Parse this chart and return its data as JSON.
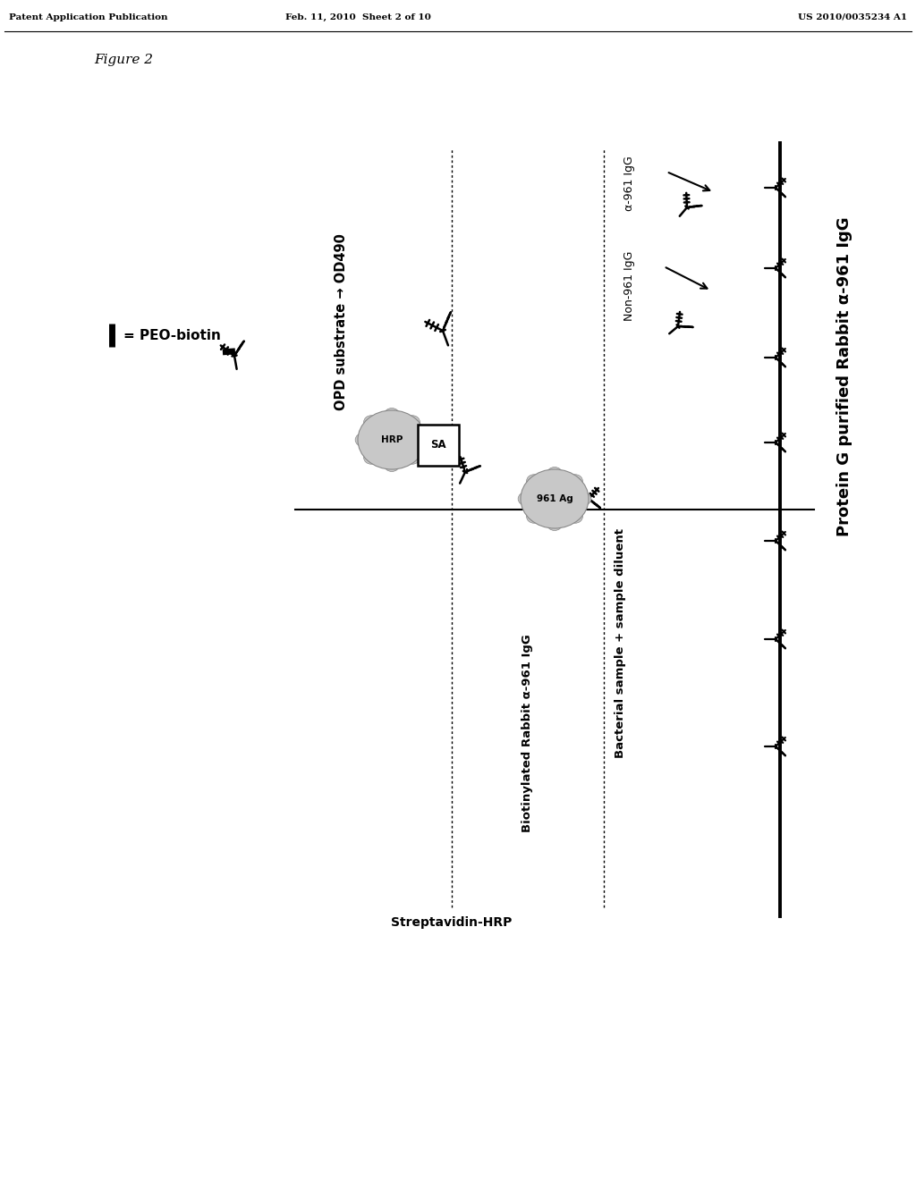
{
  "title_left": "Patent Application Publication",
  "title_mid": "Feb. 11, 2010  Sheet 2 of 10",
  "title_right": "US 2010/0035234 A1",
  "figure_label": "Figure 2",
  "legend_peo": "= PEO-biotin",
  "label_opd": "OPD substrate → OD490",
  "label_streptavidin": "Streptavidin-HRP",
  "label_biotin_rabbit": "Biotinylated Rabbit α-961 IgG",
  "label_bacterial": "Bacterial sample + sample diluent",
  "label_protein_g": "Protein G purified Rabbit α-961 IgG",
  "label_non961": "Non-961 IgG",
  "label_a961": "α-961 IgG",
  "label_hrp": "HRP",
  "label_sa": "SA",
  "label_ag": "961 Ag",
  "bg_color": "#ffffff",
  "line_color": "#000000",
  "gray_light": "#c8c8c8",
  "gray_mid": "#aaaaaa",
  "gray_dark": "#888888"
}
